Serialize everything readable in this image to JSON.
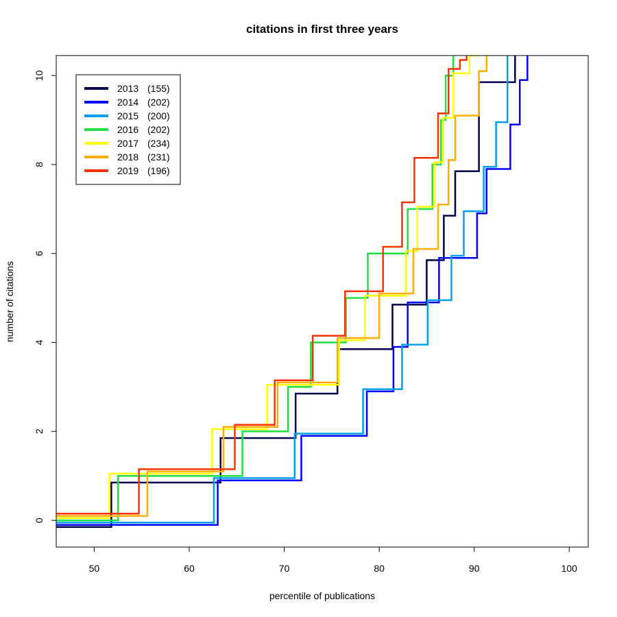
{
  "chart_data": {
    "type": "line",
    "title": "citations in first three years",
    "xlabel": "percentile of publications",
    "ylabel": "number of citations",
    "xlim": [
      46,
      102
    ],
    "ylim": [
      -0.6,
      10.45
    ],
    "x_ticks": [
      50,
      60,
      70,
      80,
      90,
      100
    ],
    "y_ticks": [
      0,
      2,
      4,
      6,
      8,
      10
    ],
    "grid": false,
    "legend_position": "top-left",
    "series": [
      {
        "name": "2013",
        "count": "(155)",
        "color": "#00004d",
        "offset": -0.15,
        "steps": [
          [
            46,
            0
          ],
          [
            51.8,
            1
          ],
          [
            63.3,
            2
          ],
          [
            71.2,
            3
          ],
          [
            75.6,
            4
          ],
          [
            81.4,
            5
          ],
          [
            85.0,
            6
          ],
          [
            86.8,
            7
          ],
          [
            88.0,
            8
          ],
          [
            90.5,
            10
          ],
          [
            94.3,
            11
          ]
        ]
      },
      {
        "name": "2014",
        "count": "(202)",
        "color": "#0000ff",
        "offset": -0.1,
        "steps": [
          [
            46,
            0
          ],
          [
            63.0,
            1
          ],
          [
            71.8,
            2
          ],
          [
            78.7,
            3
          ],
          [
            81.5,
            4
          ],
          [
            83.0,
            5
          ],
          [
            86.3,
            6
          ],
          [
            90.3,
            7
          ],
          [
            91.3,
            8
          ],
          [
            93.8,
            9
          ],
          [
            94.8,
            10
          ],
          [
            95.6,
            11
          ]
        ]
      },
      {
        "name": "2015",
        "count": "(200)",
        "color": "#00a0f0",
        "offset": -0.05,
        "steps": [
          [
            46,
            0
          ],
          [
            62.6,
            1
          ],
          [
            71.1,
            2
          ],
          [
            78.3,
            3
          ],
          [
            82.4,
            4
          ],
          [
            85.1,
            5
          ],
          [
            87.6,
            6
          ],
          [
            88.9,
            7
          ],
          [
            91.0,
            8
          ],
          [
            92.3,
            9
          ],
          [
            93.5,
            11
          ]
        ]
      },
      {
        "name": "2016",
        "count": "(202)",
        "color": "#20e040",
        "offset": 0.0,
        "steps": [
          [
            46,
            0
          ],
          [
            52.5,
            1
          ],
          [
            65.6,
            2
          ],
          [
            70.4,
            3
          ],
          [
            72.8,
            4
          ],
          [
            76.5,
            5
          ],
          [
            78.8,
            6
          ],
          [
            83.0,
            7
          ],
          [
            85.6,
            8
          ],
          [
            86.5,
            9
          ],
          [
            87.0,
            10
          ],
          [
            87.8,
            11
          ]
        ]
      },
      {
        "name": "2017",
        "count": "(234)",
        "color": "#ffff00",
        "offset": 0.05,
        "steps": [
          [
            46,
            0
          ],
          [
            51.6,
            1
          ],
          [
            62.4,
            2
          ],
          [
            68.2,
            3
          ],
          [
            75.8,
            4
          ],
          [
            78.5,
            5
          ],
          [
            82.8,
            6
          ],
          [
            84.0,
            7
          ],
          [
            85.8,
            8
          ],
          [
            86.7,
            9
          ],
          [
            87.8,
            10
          ],
          [
            89.5,
            10.4
          ],
          [
            90.3,
            11
          ]
        ]
      },
      {
        "name": "2018",
        "count": "(231)",
        "color": "#ffae00",
        "offset": 0.1,
        "steps": [
          [
            46,
            0
          ],
          [
            55.6,
            1
          ],
          [
            63.6,
            2
          ],
          [
            69.3,
            3
          ],
          [
            75.6,
            4
          ],
          [
            80.0,
            5
          ],
          [
            83.6,
            6
          ],
          [
            86.2,
            7
          ],
          [
            87.3,
            8
          ],
          [
            88.0,
            9
          ],
          [
            90.5,
            10
          ],
          [
            91.3,
            11
          ]
        ]
      },
      {
        "name": "2019",
        "count": "(196)",
        "color": "#ff3000",
        "offset": 0.15,
        "steps": [
          [
            46,
            0
          ],
          [
            54.7,
            1
          ],
          [
            64.8,
            2
          ],
          [
            69.0,
            3
          ],
          [
            73.0,
            4
          ],
          [
            76.4,
            5
          ],
          [
            80.4,
            6
          ],
          [
            82.4,
            7
          ],
          [
            83.7,
            8
          ],
          [
            86.2,
            9
          ],
          [
            87.3,
            10
          ],
          [
            88.5,
            10.2
          ],
          [
            89.2,
            11
          ]
        ]
      }
    ]
  }
}
